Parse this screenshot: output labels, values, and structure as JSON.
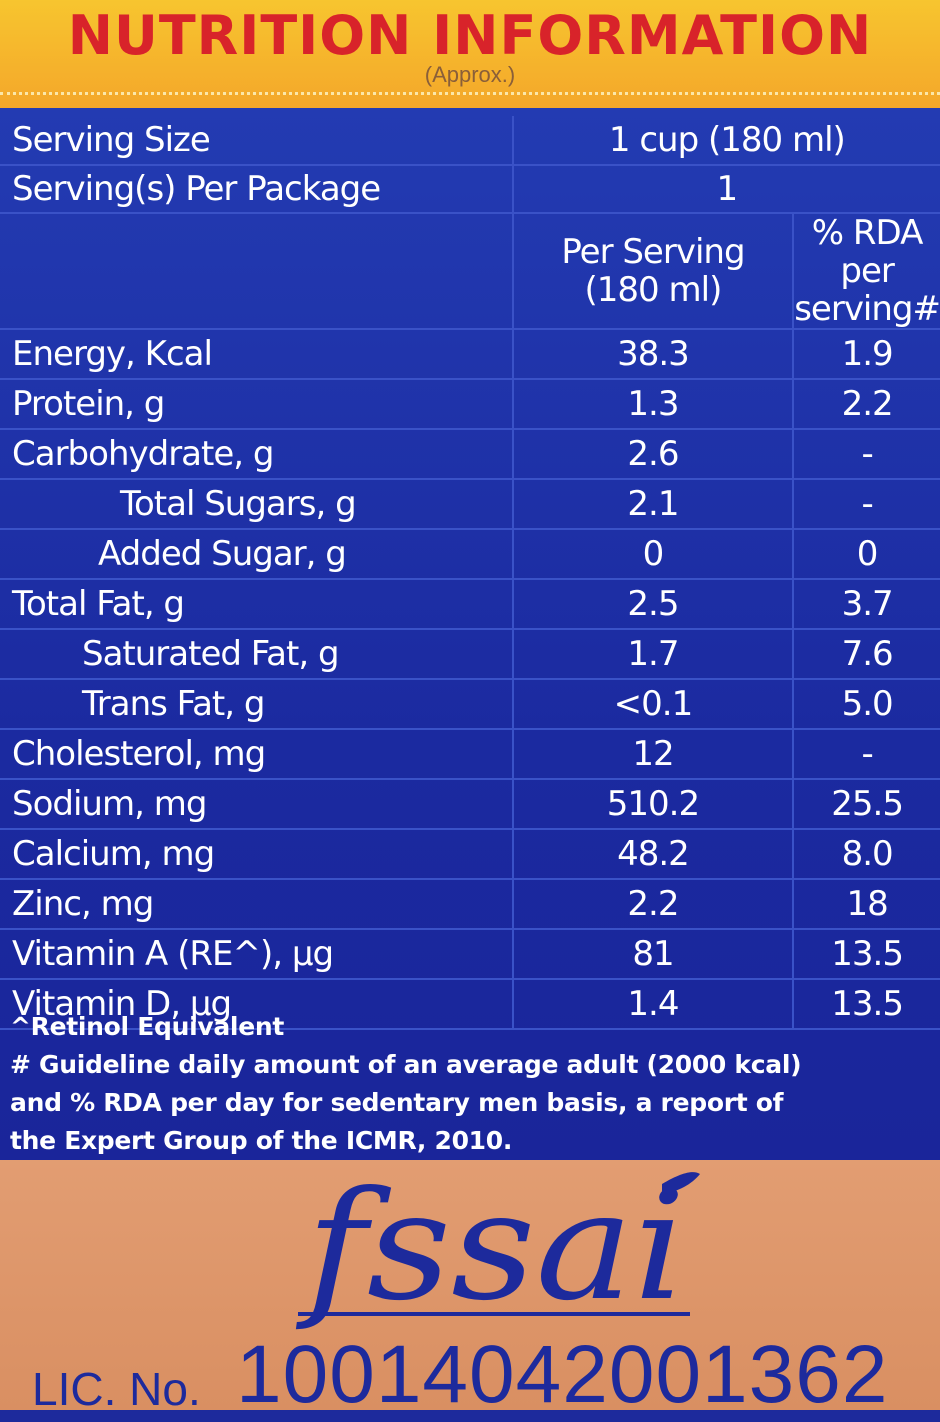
{
  "header": {
    "title": "NUTRITION INFORMATION",
    "subtitle": "(Approx.)"
  },
  "serving": {
    "size_label": "Serving Size",
    "size_value": "1 cup (180 ml)",
    "per_package_label": "Serving(s) Per Package",
    "per_package_value": "1"
  },
  "columns": {
    "per_serving_l1": "Per Serving",
    "per_serving_l2": "(180 ml)",
    "rda_l1": "% RDA per",
    "rda_l2": "serving#"
  },
  "rows": [
    {
      "name": "Energy, Kcal",
      "per_serving": "38.3",
      "rda": "1.9"
    },
    {
      "name": "Protein, g",
      "per_serving": "1.3",
      "rda": "2.2"
    },
    {
      "name": "Carbohydrate, g",
      "per_serving": "2.6",
      "rda": "-"
    },
    {
      "name": "Total Sugars, g",
      "per_serving": "2.1",
      "rda": "-"
    },
    {
      "name": "Added Sugar, g",
      "per_serving": "0",
      "rda": "0"
    },
    {
      "name": "Total Fat, g",
      "per_serving": "2.5",
      "rda": "3.7"
    },
    {
      "name": "Saturated Fat, g",
      "per_serving": "1.7",
      "rda": "7.6"
    },
    {
      "name": "Trans Fat, g",
      "per_serving": "<0.1",
      "rda": "5.0"
    },
    {
      "name": "Cholesterol, mg",
      "per_serving": "12",
      "rda": "-"
    },
    {
      "name": "Sodium, mg",
      "per_serving": "510.2",
      "rda": "25.5"
    },
    {
      "name": "Calcium, mg",
      "per_serving": "48.2",
      "rda": "8.0"
    },
    {
      "name": "Zinc, mg",
      "per_serving": "2.2",
      "rda": "18"
    },
    {
      "name": "Vitamin A (RE^), µg",
      "per_serving": "81",
      "rda": "13.5"
    },
    {
      "name": "Vitamin D, µg",
      "per_serving": "1.4",
      "rda": "13.5"
    }
  ],
  "notes": {
    "line1": "^Retinol Equivalent",
    "line2": "# Guideline daily amount of an average adult (2000 kcal)",
    "line3": "and % RDA per day for sedentary men basis, a report of",
    "line4": "the Expert Group of the ICMR, 2010."
  },
  "footer": {
    "logo_text": "fssai",
    "lic_label": "LIC. No.",
    "lic_number": "10014042001362"
  },
  "colors": {
    "header_bg": "#f5b52d",
    "title": "#d8232a",
    "panel_bg": "#1d2a9c",
    "footer_bg": "#de9669",
    "logo": "#1d2a9c"
  }
}
